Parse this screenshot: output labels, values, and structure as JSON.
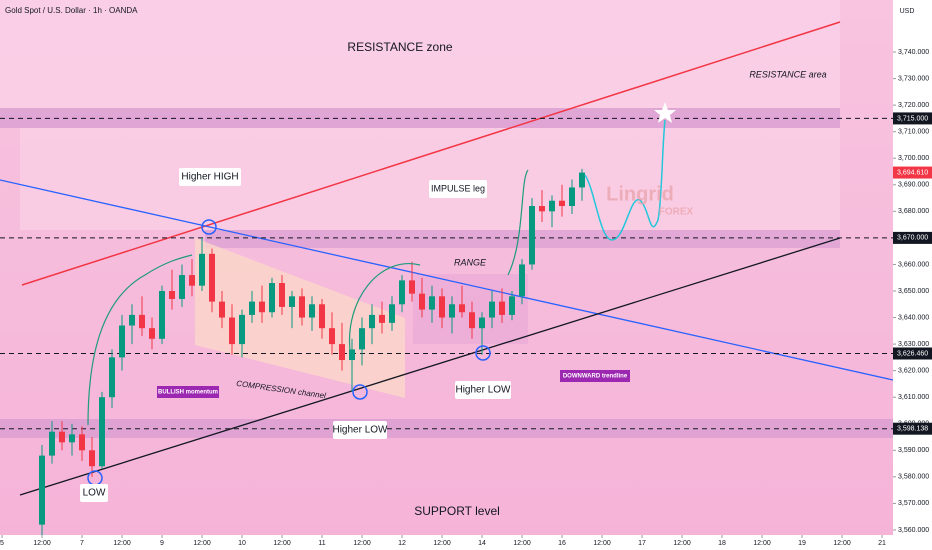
{
  "chart_data": {
    "type": "candlestick",
    "title": "Gold Spot / U.S. Dollar · 1h · OANDA",
    "currency": "USD",
    "logo": [
      "Lingrid",
      "FOREX"
    ],
    "annotations": [
      "RESISTANCE zone",
      "RESISTANCE area",
      "Higher HIGH",
      "IMPULSE leg",
      "RANGE",
      "BULLISH momentum",
      "COMPRESSION channel",
      "Higher LOW",
      "Higher LOW",
      "DOWNWARD trendline",
      "LOW",
      "SUPPORT level"
    ],
    "up_color": "#089981",
    "down_color": "#f23645",
    "x": [
      12,
      15,
      18,
      21,
      24,
      27,
      30,
      33,
      36,
      39,
      42,
      45,
      48,
      51,
      54,
      57,
      60,
      63,
      66,
      69,
      72,
      75,
      78,
      81,
      84,
      87,
      90,
      93,
      96,
      99,
      102,
      105,
      108,
      111,
      114,
      117,
      120,
      123,
      126,
      129,
      132,
      135,
      138,
      141,
      144,
      147,
      150,
      153,
      156,
      159,
      162,
      165,
      168,
      171,
      174
    ],
    "open": [
      3562,
      3588,
      3597,
      3593,
      3596,
      3590,
      3584,
      3610,
      3625,
      3637,
      3641,
      3636,
      3632,
      3650,
      3647,
      3656,
      3652,
      3664,
      3646,
      3640,
      3630,
      3641,
      3646,
      3642,
      3653,
      3644,
      3648,
      3640,
      3645,
      3636,
      3630,
      3624,
      3628,
      3636,
      3641,
      3638,
      3645,
      3654,
      3649,
      3643,
      3648,
      3640,
      3645,
      3642,
      3636,
      3640,
      3646,
      3641,
      3648,
      3660,
      3682,
      3680,
      3684,
      3682,
      3689
    ],
    "high": [
      3592,
      3601,
      3601,
      3600,
      3599,
      3595,
      3612,
      3628,
      3641,
      3645,
      3648,
      3640,
      3652,
      3658,
      3660,
      3662,
      3670,
      3666,
      3650,
      3645,
      3643,
      3650,
      3652,
      3655,
      3656,
      3650,
      3651,
      3648,
      3647,
      3642,
      3638,
      3632,
      3640,
      3645,
      3646,
      3648,
      3656,
      3661,
      3655,
      3652,
      3651,
      3648,
      3652,
      3646,
      3642,
      3650,
      3651,
      3650,
      3662,
      3685,
      3688,
      3686,
      3690,
      3692,
      3696
    ],
    "low": [
      3558,
      3585,
      3590,
      3588,
      3586,
      3580,
      3583,
      3606,
      3620,
      3630,
      3633,
      3628,
      3630,
      3643,
      3644,
      3648,
      3650,
      3642,
      3636,
      3626,
      3625,
      3638,
      3638,
      3640,
      3641,
      3636,
      3637,
      3635,
      3632,
      3626,
      3620,
      3612,
      3622,
      3630,
      3634,
      3635,
      3642,
      3646,
      3640,
      3638,
      3636,
      3634,
      3640,
      3632,
      3626,
      3636,
      3638,
      3639,
      3645,
      3658,
      3676,
      3674,
      3678,
      3679,
      3684
    ],
    "close": [
      3588,
      3597,
      3593,
      3596,
      3590,
      3584,
      3610,
      3625,
      3637,
      3641,
      3636,
      3632,
      3650,
      3647,
      3656,
      3652,
      3664,
      3646,
      3640,
      3630,
      3641,
      3646,
      3642,
      3653,
      3644,
      3648,
      3640,
      3645,
      3636,
      3630,
      3624,
      3628,
      3636,
      3641,
      3638,
      3645,
      3654,
      3649,
      3643,
      3648,
      3640,
      3645,
      3642,
      3636,
      3640,
      3646,
      3641,
      3648,
      3660,
      3682,
      3680,
      3684,
      3682,
      3689,
      3694.61
    ],
    "levels": [
      {
        "value": 3715,
        "label": "3,715.000",
        "color": "#131722"
      },
      {
        "value": 3694.61,
        "label": "3,694.610",
        "color": "#f23645"
      },
      {
        "value": 3670,
        "label": "3,670.000",
        "color": "#131722"
      },
      {
        "value": 3626.46,
        "label": "3,626.460",
        "color": "#131722"
      },
      {
        "value": 3598.138,
        "label": "3,598.138",
        "color": "#131722"
      }
    ],
    "xlim": [
      -0.6,
      267.3
    ],
    "ylim": [
      3558.1,
      3759.6
    ],
    "xticks": [
      {
        "value": 0,
        "label": "5"
      },
      {
        "value": 12,
        "label": "12:00"
      },
      {
        "value": 24,
        "label": "7"
      },
      {
        "value": 36,
        "label": "12:00"
      },
      {
        "value": 48,
        "label": "9"
      },
      {
        "value": 60,
        "label": "12:00"
      },
      {
        "value": 72,
        "label": "10"
      },
      {
        "value": 84,
        "label": "12:00"
      },
      {
        "value": 96,
        "label": "11"
      },
      {
        "value": 108,
        "label": "12:00"
      },
      {
        "value": 120,
        "label": "12"
      },
      {
        "value": 132,
        "label": "12:00"
      },
      {
        "value": 144,
        "label": "14"
      },
      {
        "value": 156,
        "label": "12:00"
      },
      {
        "value": 168,
        "label": "16"
      },
      {
        "value": 180,
        "label": "12:00"
      },
      {
        "value": 192,
        "label": "17"
      },
      {
        "value": 204,
        "label": "12:00"
      },
      {
        "value": 216,
        "label": "18"
      },
      {
        "value": 228,
        "label": "12:00"
      },
      {
        "value": 240,
        "label": "19"
      },
      {
        "value": 252,
        "label": "12:00"
      },
      {
        "value": 264,
        "label": "21"
      }
    ],
    "yticks": [
      {
        "value": 3560,
        "label": "3,560.000"
      },
      {
        "value": 3570,
        "label": "3,570.000"
      },
      {
        "value": 3580,
        "label": "3,580.000"
      },
      {
        "value": 3590,
        "label": "3,590.000"
      },
      {
        "value": 3600,
        "label": "3,600.000"
      },
      {
        "value": 3610,
        "label": "3,610.000"
      },
      {
        "value": 3620,
        "label": "3,620.000"
      },
      {
        "value": 3630,
        "label": "3,630.000"
      },
      {
        "value": 3640,
        "label": "3,640.000"
      },
      {
        "value": 3650,
        "label": "3,650.000"
      },
      {
        "value": 3660,
        "label": "3,660.000"
      },
      {
        "value": 3670,
        "label": "3,670.000"
      },
      {
        "value": 3680,
        "label": "3,680.000"
      },
      {
        "value": 3690,
        "label": "3,690.000"
      },
      {
        "value": 3700,
        "label": "3,700.000"
      },
      {
        "value": 3710,
        "label": "3,710.000"
      },
      {
        "value": 3720,
        "label": "3,720.000"
      },
      {
        "value": 3730,
        "label": "3,730.000"
      },
      {
        "value": 3740,
        "label": "3,740.000"
      }
    ]
  }
}
